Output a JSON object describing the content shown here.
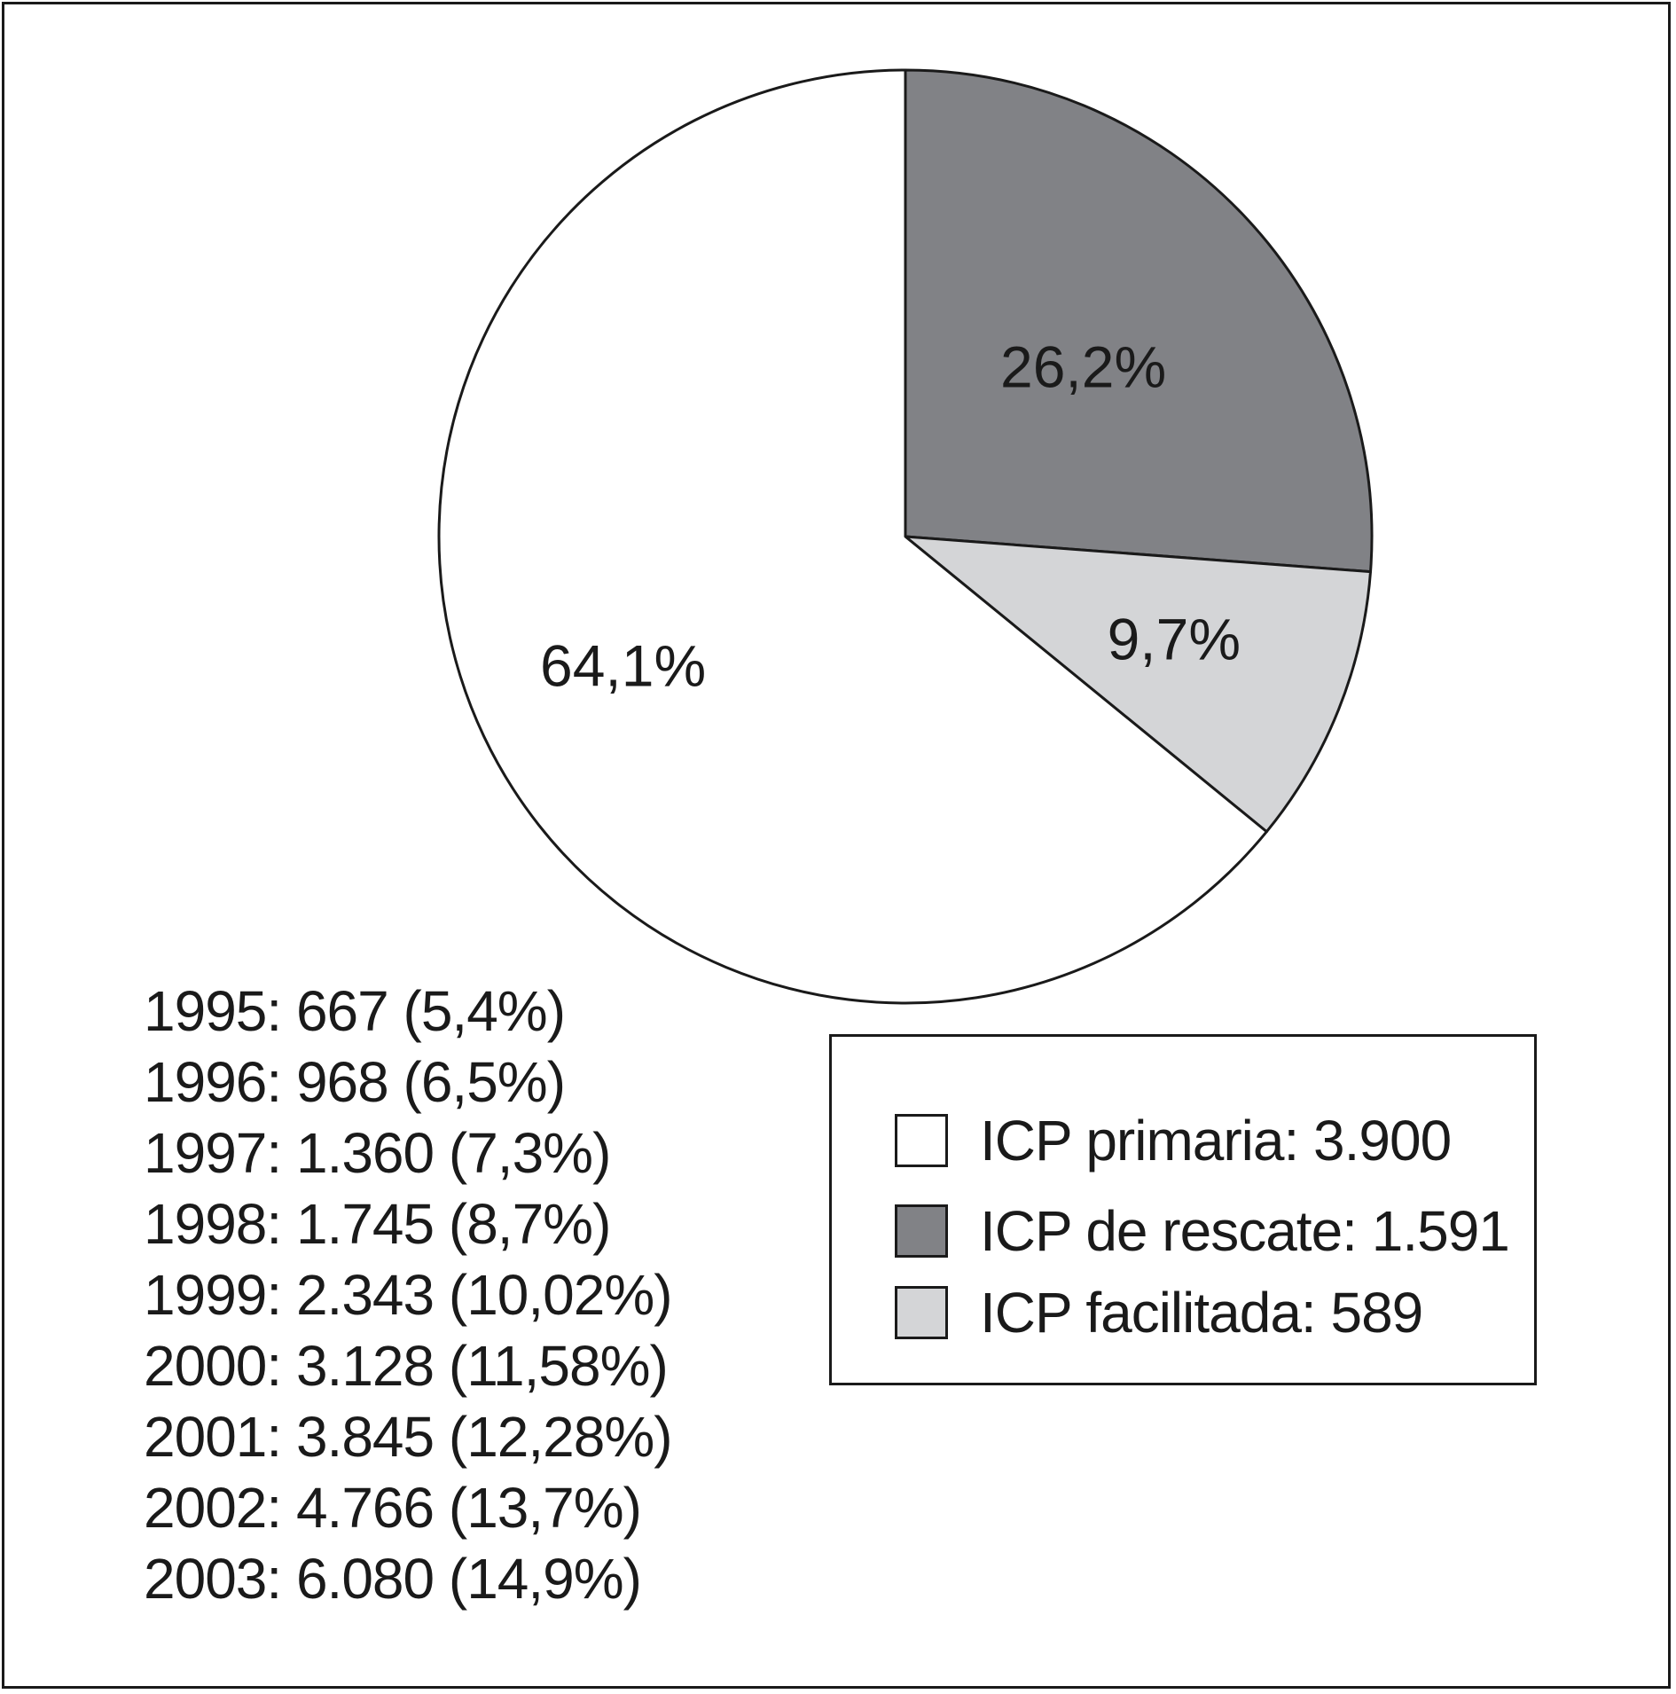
{
  "chart_data": {
    "type": "pie",
    "slices": [
      {
        "label": "ICP primaria: 3.900",
        "value": 64.1,
        "value_label": "64,1%",
        "color": "#ffffff"
      },
      {
        "label": "ICP de rescate: 1.591",
        "value": 26.2,
        "value_label": "26,2%",
        "color": "#818286"
      },
      {
        "label": "ICP facilitada: 589",
        "value": 9.7,
        "value_label": "9,7%",
        "color": "#d4d5d7"
      }
    ],
    "legend_placement": "bottom-right",
    "annotations": [
      "1995: 667 (5,4%)",
      "1996: 968 (6,5%)",
      "1997: 1.360 (7,3%)",
      "1998: 1.745 (8,7%)",
      "1999: 2.343 (10,02%)",
      "2000: 3.128 (11,58%)",
      "2001: 3.845 (12,28%)",
      "2002: 4.766 (13,7%)",
      "2003: 6.080 (14,9%)"
    ]
  }
}
